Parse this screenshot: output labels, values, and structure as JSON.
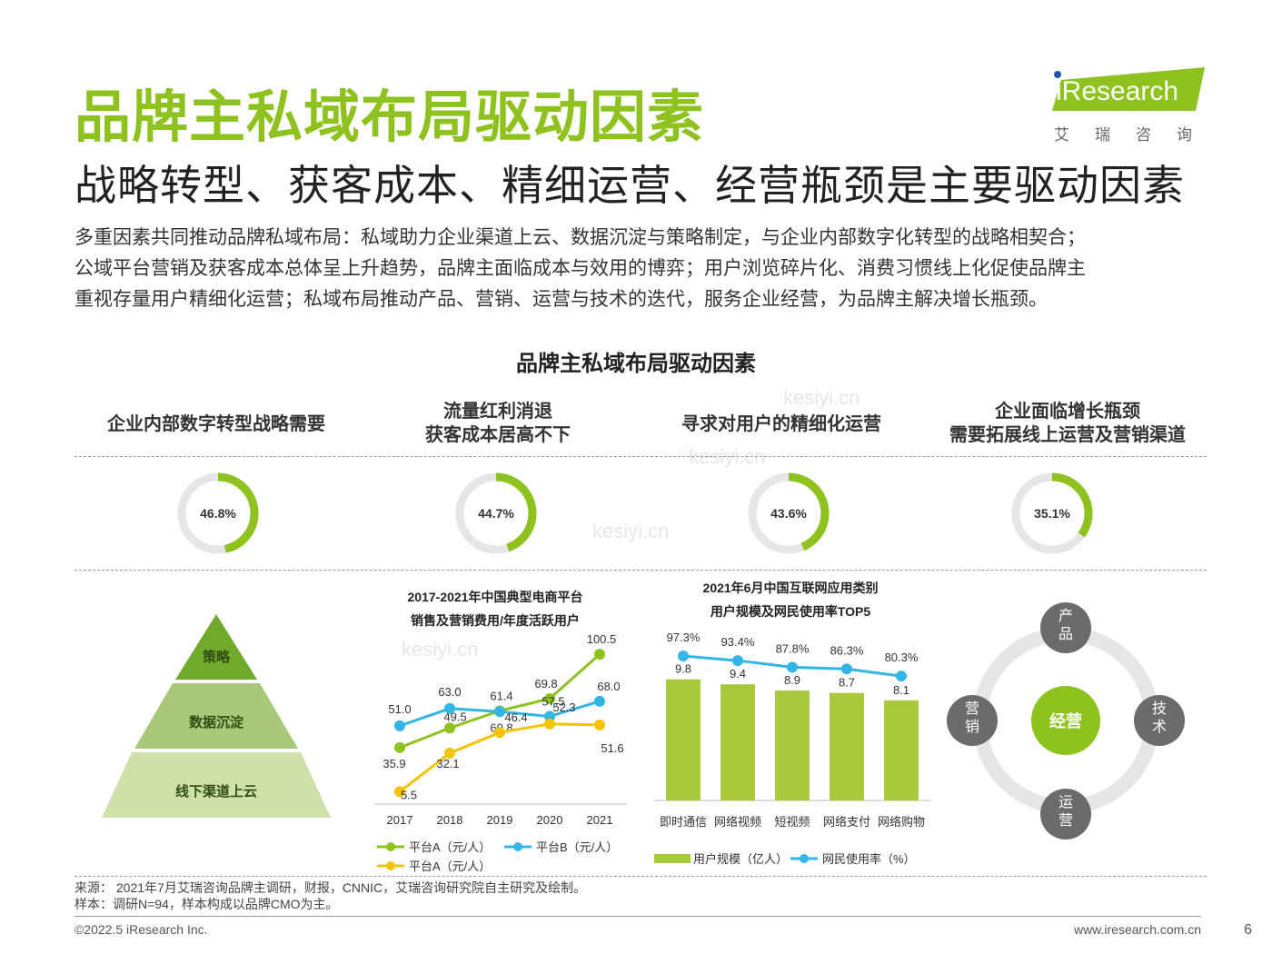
{
  "header": {
    "title": "品牌主私域布局驱动因素",
    "subtitle": "战略转型、获客成本、精细运营、经营瓶颈是主要驱动因素",
    "desc_lines": [
      "多重因素共同推动品牌私域布局：私域助力企业渠道上云、数据沉淀与策略制定，与企业内部数字化转型的战略相契合；",
      "公域平台营销及获客成本总体呈上升趋势，品牌主面临成本与效用的博弈；用户浏览碎片化、消费习惯线上化促使品牌主",
      "重视存量用户精细化运营；私域布局推动产品、营销、运营与技术的迭代，服务企业经营，为品牌主解决增长瓶颈。"
    ]
  },
  "logo": {
    "word": "iResearch",
    "sub": "艾瑞咨询"
  },
  "section_title": "品牌主私域布局驱动因素",
  "factors": [
    {
      "line1": "企业内部数字转型战略需要",
      "line2": "",
      "pct_label": "46.8%",
      "pct": 46.8
    },
    {
      "line1": "流量红利消退",
      "line2": "获客成本居高不下",
      "pct_label": "44.7%",
      "pct": 44.7
    },
    {
      "line1": "寻求对用户的精细化运营",
      "line2": "",
      "pct_label": "43.6%",
      "pct": 43.6
    },
    {
      "line1": "企业面临增长瓶颈",
      "line2": "需要拓展线上运营及营销渠道",
      "pct_label": "35.1%",
      "pct": 35.1
    }
  ],
  "pyramid": {
    "levels": [
      "策略",
      "数据沉淀",
      "线下渠道上云"
    ]
  },
  "colors": {
    "green": "#8dc21f",
    "blue": "#33b5e5",
    "yellow": "#f5c400",
    "gray": "#e6e6e6",
    "dark_gray": "#6b6b6b"
  },
  "cycle": {
    "center": "经营",
    "top": "产品",
    "left": "营销",
    "right": "技术",
    "bottom": "运营"
  },
  "chart_data": [
    {
      "type": "line",
      "title_line1": "2017-2021年中国典型电商平台",
      "title_line2": "销售及营销费用/年度活跃用户",
      "categories": [
        "2017",
        "2018",
        "2019",
        "2020",
        "2021"
      ],
      "series": [
        {
          "name": "平台A（元/人）",
          "values": [
            35.9,
            49.5,
            61.4,
            69.8,
            100.5
          ],
          "color": "#8dc21f"
        },
        {
          "name": "平台B（元/人）",
          "values": [
            51.0,
            63.0,
            60.8,
            57.5,
            68.0
          ],
          "color": "#33b5e5"
        },
        {
          "name": "平台A（元/人）",
          "values": [
            5.5,
            32.1,
            46.4,
            52.3,
            51.6
          ],
          "color": "#f5c400"
        }
      ],
      "labels": [
        [
          "35.9",
          "49.5",
          "61.4",
          "69.8",
          "100.5"
        ],
        [
          "51.0",
          "63.0",
          "60.8",
          "57.5",
          "68.0"
        ],
        [
          "5.5",
          "32.1",
          "46.4",
          "52.3",
          "51.6"
        ]
      ],
      "ylim": [
        0,
        110
      ],
      "grid": false
    },
    {
      "type": "bar",
      "title_line1": "2021年6月中国互联网应用类别",
      "title_line2": "用户规模及网民使用率TOP5",
      "categories": [
        "即时通信",
        "网络视频",
        "短视频",
        "网络支付",
        "网络购物"
      ],
      "series": [
        {
          "name": "用户规模（亿人）",
          "values": [
            9.8,
            9.4,
            8.9,
            8.7,
            8.1
          ],
          "color": "#a8c93a"
        },
        {
          "name": "网民使用率（%）",
          "values": [
            97.3,
            93.4,
            87.8,
            86.3,
            80.3
          ],
          "color": "#33b5e5"
        }
      ],
      "bar_labels": [
        "9.8",
        "9.4",
        "8.9",
        "8.7",
        "8.1"
      ],
      "line_labels": [
        "97.3%",
        "93.4%",
        "87.8%",
        "86.3%",
        "80.3%"
      ],
      "grid": false
    }
  ],
  "source": {
    "line1": "来源： 2021年7月艾瑞咨询品牌主调研，财报，CNNIC，艾瑞咨询研究院自主研究及绘制。",
    "line2": "样本：调研N=94，样本构成以品牌CMO为主。"
  },
  "footer": {
    "left": "©2022.5 iResearch Inc.",
    "right": "www.iresearch.com.cn",
    "page": "6"
  },
  "watermark": "kesiyi.cn"
}
